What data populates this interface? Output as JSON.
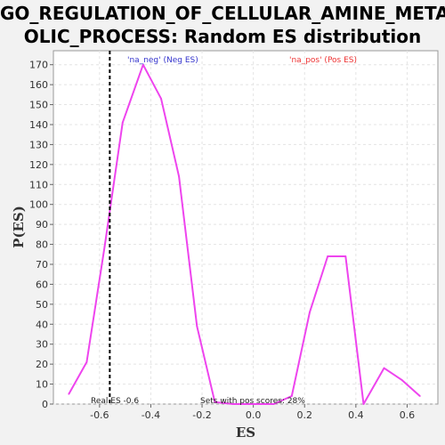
{
  "chart_data": {
    "type": "line",
    "title_lines": [
      "GO_REGULATION_OF_CELLULAR_AMINE_METAB",
      "OLIC_PROCESS: Random ES distribution"
    ],
    "xlabel": "ES",
    "ylabel": "P(ES)",
    "xlim": [
      -0.78,
      0.72
    ],
    "ylim": [
      0,
      177
    ],
    "xticks": [
      -0.6,
      -0.4,
      -0.2,
      0.0,
      0.2,
      0.4,
      0.6
    ],
    "xtick_labels": [
      "-0.6",
      "-0.4",
      "-0.2",
      "0.0",
      "0.2",
      "0.4",
      "0.6"
    ],
    "yticks": [
      0,
      10,
      20,
      30,
      40,
      50,
      60,
      70,
      80,
      90,
      100,
      110,
      120,
      130,
      140,
      150,
      160,
      170
    ],
    "ytick_labels": [
      "0",
      "10",
      "20",
      "30",
      "40",
      "50",
      "60",
      "70",
      "80",
      "90",
      "100",
      "110",
      "120",
      "130",
      "140",
      "150",
      "160",
      "170"
    ],
    "grid": true,
    "series": [
      {
        "color": "#ee44ee",
        "x": [
          -0.72,
          -0.65,
          -0.58,
          -0.51,
          -0.43,
          -0.36,
          -0.29,
          -0.22,
          -0.15,
          -0.08,
          0.0,
          0.08,
          0.15,
          0.22,
          0.29,
          0.36,
          0.43,
          0.51,
          0.58,
          0.65
        ],
        "y": [
          5,
          21,
          79,
          141,
          170,
          153,
          114,
          39,
          1,
          0,
          0,
          0,
          4,
          46,
          74,
          74,
          0,
          18,
          12,
          4
        ]
      }
    ],
    "real_es_line": {
      "x": -0.56,
      "color": "#000000",
      "style": "dashed"
    },
    "legend": [
      {
        "label": "'na_neg' (Neg ES)",
        "color": "#3333cc"
      },
      {
        "label": "'na_pos' (Pos ES)",
        "color": "#ee3333"
      }
    ],
    "legend_placement": "top",
    "annotations": {
      "real_es": "Real ES -0.6",
      "pos_scores": "Sets with pos scores: 28%"
    }
  }
}
